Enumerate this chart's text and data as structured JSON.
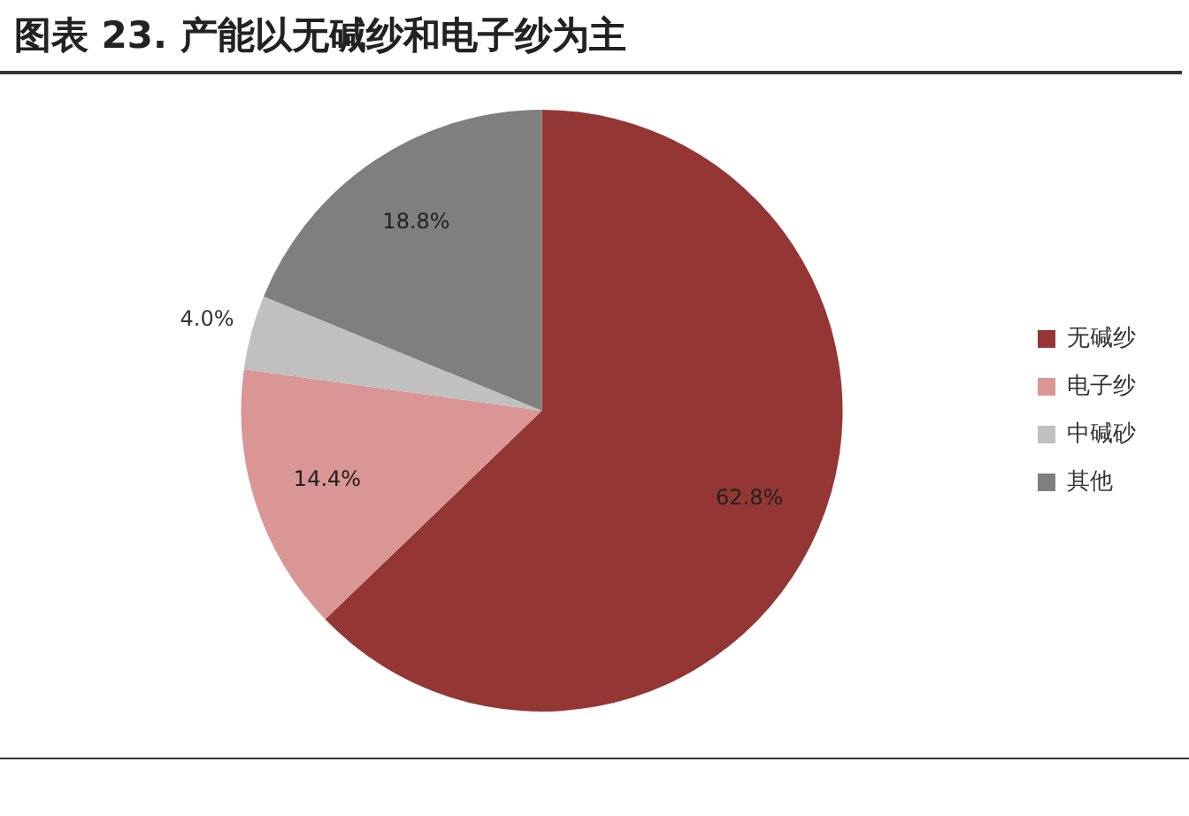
{
  "chart_data": {
    "type": "pie",
    "title": "图表 23. 产能以无碱纱和电子纱为主",
    "categories": [
      "无碱纱",
      "电子纱",
      "中碱砂",
      "其他"
    ],
    "values": [
      62.8,
      14.4,
      4.0,
      18.8
    ],
    "colors": [
      "#943634",
      "#d99694",
      "#c0c0c0",
      "#7f7f7f"
    ],
    "value_labels": [
      "62.8%",
      "14.4%",
      "4.0%",
      "18.8%"
    ],
    "legend": "right"
  }
}
